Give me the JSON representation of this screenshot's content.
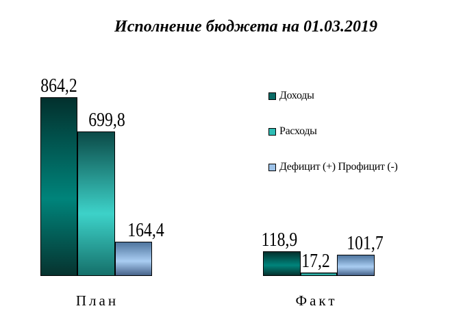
{
  "title": "Исполнение бюджета на 01.03.2019",
  "legend": {
    "position": "right",
    "items": [
      {
        "label": "Доходы",
        "color": "#0a6b66"
      },
      {
        "label": "Расходы",
        "color": "#2fbdb5"
      },
      {
        "label": "Дефицит (+) Профицит (-)",
        "color": "#9dc2e8"
      }
    ]
  },
  "chart_data": {
    "type": "bar",
    "title": "Исполнение бюджета на 01.03.2019",
    "categories": [
      "План",
      "Факт"
    ],
    "series": [
      {
        "name": "Доходы",
        "values": [
          864.2,
          118.9
        ],
        "color_mid": "#00847b"
      },
      {
        "name": "Расходы",
        "values": [
          699.8,
          17.2
        ],
        "color_mid": "#3dd2c9"
      },
      {
        "name": "Дефицит (+) Профицит (-)",
        "values": [
          164.4,
          101.7
        ],
        "color_mid": "#a9cdf2"
      }
    ],
    "labels": {
      "plan": [
        "864,2",
        "699,8",
        "164,4"
      ],
      "fact": [
        "118,9",
        "17,2",
        "101,7"
      ]
    },
    "value_decimal_separator": ",",
    "ylim": [
      0,
      900
    ],
    "grid": false,
    "axes_visible": false,
    "legend_position": "right",
    "background": "#ffffff"
  }
}
